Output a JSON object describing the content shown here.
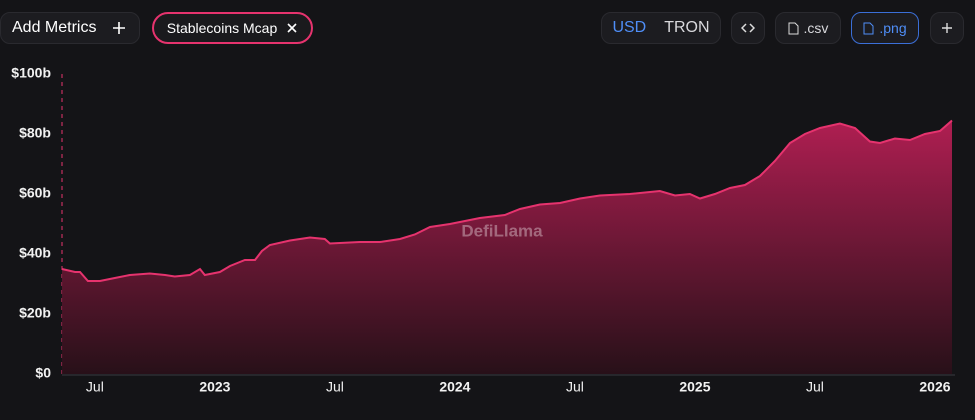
{
  "toolbar": {
    "add_metrics": "Add Metrics",
    "currency": "USD",
    "chain": "TRON",
    "csv": ".csv",
    "png": ".png"
  },
  "chart_data": {
    "type": "area",
    "watermark": "DefiLlama",
    "x": [
      2022.363,
      2022.417,
      2022.438,
      2022.471,
      2022.521,
      2022.583,
      2022.646,
      2022.729,
      2022.792,
      2022.833,
      2022.896,
      2022.938,
      2022.958,
      2023.021,
      2023.063,
      2023.125,
      2023.167,
      2023.196,
      2023.229,
      2023.313,
      2023.396,
      2023.458,
      2023.479,
      2023.604,
      2023.688,
      2023.771,
      2023.833,
      2023.896,
      2023.979,
      2024.104,
      2024.208,
      2024.271,
      2024.354,
      2024.438,
      2024.521,
      2024.604,
      2024.729,
      2024.854,
      2024.917,
      2024.979,
      2025.021,
      2025.083,
      2025.146,
      2025.208,
      2025.271,
      2025.333,
      2025.396,
      2025.458,
      2025.521,
      2025.604,
      2025.667,
      2025.729,
      2025.771,
      2025.833,
      2025.896,
      2025.958,
      2026.021,
      2026.071
    ],
    "series": [
      {
        "name": "Stablecoins Mcap",
        "color": "#e6336e",
        "values": [
          35,
          34,
          34,
          31,
          31,
          32,
          33,
          33.5,
          33,
          32.5,
          33,
          35,
          33,
          34,
          36,
          38,
          38,
          41,
          43,
          44.5,
          45.5,
          45,
          43.5,
          44,
          44,
          45,
          46.5,
          49,
          50,
          52,
          53,
          55,
          56.5,
          57,
          58.5,
          59.5,
          60,
          61,
          59.5,
          60,
          58.5,
          60,
          62,
          63,
          66,
          71,
          77,
          80,
          82,
          83.5,
          82,
          77.5,
          77,
          78.5,
          78,
          80,
          81,
          84.5
        ]
      }
    ],
    "xlim": [
      2022.363,
      2026.071
    ],
    "xticks": [
      {
        "value": 2022.5,
        "label": "Jul"
      },
      2023,
      {
        "value": 2023.5,
        "label": "Jul"
      },
      2024,
      {
        "value": 2024.5,
        "label": "Jul"
      },
      2025,
      {
        "value": 2025.5,
        "label": "Jul"
      },
      2026
    ],
    "ylim": [
      0,
      100
    ],
    "yticks": [
      {
        "value": 0,
        "label": "$0"
      },
      {
        "value": 20,
        "label": "$20b"
      },
      {
        "value": 40,
        "label": "$40b"
      },
      {
        "value": 60,
        "label": "$60b"
      },
      {
        "value": 80,
        "label": "$80b"
      },
      {
        "value": 100,
        "label": "$100b"
      }
    ],
    "grid": false
  }
}
